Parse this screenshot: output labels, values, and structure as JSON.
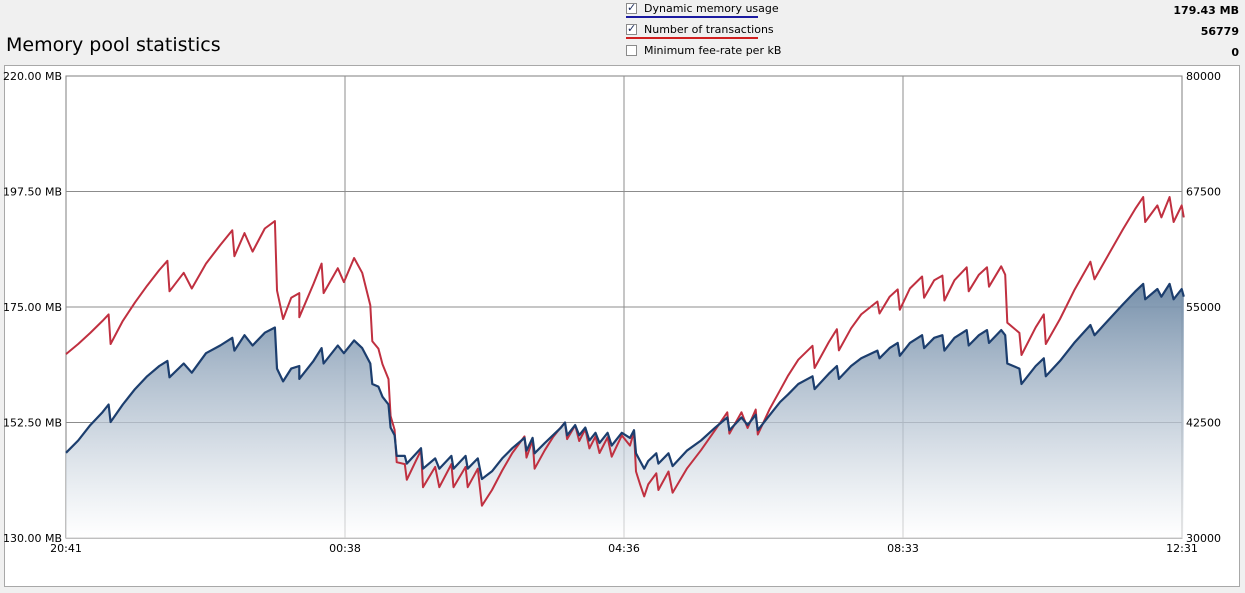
{
  "page_title": "Memory pool statistics",
  "legend": [
    {
      "label": "Dynamic memory usage",
      "checked": true,
      "underline_color": "#1a1aa0",
      "value": "179.43 MB"
    },
    {
      "label": "Number of transactions",
      "checked": true,
      "underline_color": "#d02020",
      "value": "56779"
    },
    {
      "label": "Minimum fee-rate per kB",
      "checked": false,
      "underline_color": "",
      "value": "0"
    }
  ],
  "chart_data": {
    "type": "line",
    "title": "Memory pool statistics",
    "x_tick_labels": [
      "20:41",
      "00:38",
      "04:36",
      "08:33",
      "12:31"
    ],
    "y_left": {
      "tick_labels": [
        "220.00 MB",
        "197.50 MB",
        "175.00 MB",
        "152.50 MB",
        "130.00 MB"
      ],
      "ylim": [
        130,
        220
      ],
      "unit": "MB"
    },
    "y_right": {
      "tick_labels": [
        "80000",
        "67500",
        "55000",
        "42500",
        "30000"
      ],
      "ylim": [
        30000,
        80000
      ]
    },
    "grid": true,
    "x_range_hours": [
      0,
      15.83
    ],
    "series": [
      {
        "name": "Dynamic memory usage",
        "axis": "left",
        "color": "#1c3e6e",
        "filled": true,
        "points": [
          [
            0,
            146.6
          ],
          [
            0.3,
            149.0
          ],
          [
            0.6,
            152.0
          ],
          [
            0.9,
            154.5
          ],
          [
            1.05,
            156.0
          ],
          [
            1.1,
            152.6
          ],
          [
            1.4,
            156.0
          ],
          [
            1.7,
            159.0
          ],
          [
            2.0,
            161.5
          ],
          [
            2.3,
            163.5
          ],
          [
            2.5,
            164.5
          ],
          [
            2.55,
            161.3
          ],
          [
            2.9,
            164.0
          ],
          [
            3.1,
            162.2
          ],
          [
            3.45,
            166.0
          ],
          [
            3.8,
            167.5
          ],
          [
            4.1,
            169.0
          ],
          [
            4.15,
            166.5
          ],
          [
            4.4,
            169.5
          ],
          [
            4.6,
            167.5
          ],
          [
            4.9,
            170.0
          ],
          [
            5.15,
            171.0
          ],
          [
            5.2,
            163.0
          ],
          [
            5.35,
            160.5
          ],
          [
            5.55,
            163.0
          ],
          [
            5.75,
            163.5
          ],
          [
            5.75,
            161.0
          ],
          [
            6.1,
            164.5
          ],
          [
            6.3,
            167.0
          ],
          [
            6.35,
            164.0
          ],
          [
            6.7,
            167.5
          ],
          [
            6.85,
            166.0
          ],
          [
            7.1,
            168.5
          ],
          [
            7.3,
            167.0
          ],
          [
            7.5,
            164.0
          ],
          [
            7.55,
            160.0
          ],
          [
            7.7,
            159.5
          ],
          [
            7.8,
            157.5
          ],
          [
            7.95,
            156.0
          ],
          [
            8.0,
            151.5
          ],
          [
            8.1,
            150.0
          ],
          [
            8.15,
            146.0
          ],
          [
            8.35,
            146.0
          ],
          [
            8.4,
            144.5
          ],
          [
            8.75,
            147.5
          ],
          [
            8.8,
            143.5
          ],
          [
            9.1,
            145.5
          ],
          [
            9.2,
            143.5
          ],
          [
            9.5,
            146.0
          ],
          [
            9.55,
            143.5
          ],
          [
            9.85,
            146.0
          ],
          [
            9.9,
            143.5
          ],
          [
            10.15,
            145.5
          ],
          [
            10.25,
            141.5
          ],
          [
            10.5,
            143.0
          ],
          [
            10.75,
            145.5
          ],
          [
            11.0,
            147.5
          ],
          [
            11.3,
            149.5
          ],
          [
            11.35,
            147.0
          ],
          [
            11.5,
            149.5
          ],
          [
            11.55,
            146.5
          ],
          [
            11.8,
            148.5
          ],
          [
            12.0,
            150.0
          ],
          [
            12.2,
            151.5
          ],
          [
            12.3,
            152.5
          ],
          [
            12.35,
            150.0
          ],
          [
            12.55,
            152.0
          ],
          [
            12.65,
            150.0
          ],
          [
            12.8,
            151.5
          ],
          [
            12.9,
            149.0
          ],
          [
            13.05,
            150.5
          ],
          [
            13.15,
            148.5
          ],
          [
            13.35,
            150.5
          ],
          [
            13.45,
            148.0
          ],
          [
            13.7,
            150.5
          ],
          [
            13.9,
            149.5
          ],
          [
            14.0,
            151.0
          ],
          [
            14.05,
            146.5
          ],
          [
            14.15,
            145.0
          ],
          [
            14.25,
            143.5
          ],
          [
            14.35,
            145.0
          ],
          [
            14.55,
            146.5
          ],
          [
            14.6,
            144.5
          ],
          [
            14.85,
            146.5
          ],
          [
            14.95,
            144.0
          ],
          [
            15.3,
            147.0
          ],
          [
            15.65,
            149.0
          ],
          [
            16.0,
            151.5
          ],
          [
            16.3,
            153.5
          ],
          [
            16.35,
            151.0
          ],
          [
            16.65,
            153.5
          ],
          [
            16.8,
            152.0
          ],
          [
            17.0,
            154.0
          ],
          [
            17.05,
            151.0
          ],
          [
            17.35,
            154.0
          ],
          [
            17.6,
            156.5
          ],
          [
            17.8,
            158.0
          ],
          [
            18.05,
            160.0
          ],
          [
            18.4,
            161.5
          ],
          [
            18.45,
            159.0
          ],
          [
            18.8,
            162.0
          ],
          [
            19.0,
            163.5
          ],
          [
            19.05,
            161.0
          ],
          [
            19.35,
            163.5
          ],
          [
            19.6,
            165.0
          ],
          [
            20.0,
            166.5
          ],
          [
            20.05,
            165.0
          ],
          [
            20.3,
            167.0
          ],
          [
            20.5,
            168.0
          ],
          [
            20.55,
            165.5
          ],
          [
            20.8,
            168.0
          ],
          [
            21.1,
            169.5
          ],
          [
            21.15,
            167.0
          ],
          [
            21.4,
            169.0
          ],
          [
            21.6,
            169.5
          ],
          [
            21.65,
            166.5
          ],
          [
            21.9,
            169.0
          ],
          [
            22.2,
            170.5
          ],
          [
            22.25,
            167.5
          ],
          [
            22.5,
            169.5
          ],
          [
            22.7,
            170.5
          ],
          [
            22.75,
            168.0
          ],
          [
            23.05,
            170.5
          ],
          [
            23.15,
            169.5
          ],
          [
            23.2,
            164.0
          ],
          [
            23.5,
            163.0
          ],
          [
            23.55,
            160.0
          ],
          [
            23.9,
            163.5
          ],
          [
            24.1,
            165.0
          ],
          [
            24.15,
            161.5
          ],
          [
            24.5,
            164.5
          ],
          [
            24.85,
            168.0
          ],
          [
            25.25,
            171.5
          ],
          [
            25.35,
            169.5
          ],
          [
            25.7,
            172.5
          ],
          [
            26.05,
            175.5
          ],
          [
            26.35,
            178.0
          ],
          [
            26.55,
            179.5
          ],
          [
            26.6,
            176.5
          ],
          [
            26.9,
            178.5
          ],
          [
            27.0,
            177.0
          ],
          [
            27.2,
            179.5
          ],
          [
            27.3,
            176.5
          ],
          [
            27.5,
            178.5
          ],
          [
            27.55,
            177.0
          ]
        ],
        "x_scale": 0.5755
      },
      {
        "name": "Number of transactions",
        "axis": "right",
        "color": "#c03040",
        "points": [
          [
            0,
            49900
          ],
          [
            0.3,
            51000
          ],
          [
            0.6,
            52200
          ],
          [
            0.9,
            53500
          ],
          [
            1.05,
            54200
          ],
          [
            1.1,
            51000
          ],
          [
            1.4,
            53500
          ],
          [
            1.7,
            55500
          ],
          [
            2.0,
            57300
          ],
          [
            2.3,
            59000
          ],
          [
            2.5,
            60000
          ],
          [
            2.55,
            56700
          ],
          [
            2.9,
            58700
          ],
          [
            3.1,
            57000
          ],
          [
            3.45,
            59700
          ],
          [
            3.8,
            61700
          ],
          [
            4.1,
            63300
          ],
          [
            4.15,
            60500
          ],
          [
            4.4,
            63000
          ],
          [
            4.6,
            61000
          ],
          [
            4.9,
            63500
          ],
          [
            5.15,
            64300
          ],
          [
            5.2,
            56800
          ],
          [
            5.35,
            53700
          ],
          [
            5.55,
            56000
          ],
          [
            5.75,
            56500
          ],
          [
            5.75,
            53900
          ],
          [
            6.1,
            57500
          ],
          [
            6.3,
            59700
          ],
          [
            6.35,
            56500
          ],
          [
            6.7,
            59200
          ],
          [
            6.85,
            57700
          ],
          [
            7.1,
            60300
          ],
          [
            7.3,
            58700
          ],
          [
            7.5,
            55200
          ],
          [
            7.55,
            51300
          ],
          [
            7.7,
            50500
          ],
          [
            7.8,
            48800
          ],
          [
            7.95,
            47200
          ],
          [
            8.0,
            43200
          ],
          [
            8.1,
            41700
          ],
          [
            8.15,
            38200
          ],
          [
            8.35,
            38000
          ],
          [
            8.4,
            36300
          ],
          [
            8.75,
            39500
          ],
          [
            8.8,
            35500
          ],
          [
            9.1,
            37700
          ],
          [
            9.2,
            35500
          ],
          [
            9.5,
            38000
          ],
          [
            9.55,
            35500
          ],
          [
            9.85,
            37700
          ],
          [
            9.9,
            35500
          ],
          [
            10.15,
            37500
          ],
          [
            10.25,
            33500
          ],
          [
            10.5,
            35200
          ],
          [
            10.75,
            37300
          ],
          [
            11.0,
            39200
          ],
          [
            11.3,
            41000
          ],
          [
            11.35,
            38700
          ],
          [
            11.5,
            40600
          ],
          [
            11.55,
            37500
          ],
          [
            11.8,
            39500
          ],
          [
            12.0,
            40900
          ],
          [
            12.2,
            42000
          ],
          [
            12.3,
            42500
          ],
          [
            12.35,
            40700
          ],
          [
            12.55,
            42200
          ],
          [
            12.65,
            40500
          ],
          [
            12.8,
            41800
          ],
          [
            12.9,
            39700
          ],
          [
            13.05,
            41000
          ],
          [
            13.15,
            39200
          ],
          [
            13.35,
            40900
          ],
          [
            13.45,
            38800
          ],
          [
            13.7,
            41100
          ],
          [
            13.9,
            40000
          ],
          [
            14.0,
            41500
          ],
          [
            14.05,
            37200
          ],
          [
            14.15,
            35800
          ],
          [
            14.25,
            34500
          ],
          [
            14.35,
            35800
          ],
          [
            14.55,
            37000
          ],
          [
            14.6,
            35200
          ],
          [
            14.85,
            37200
          ],
          [
            14.95,
            34900
          ],
          [
            15.3,
            37500
          ],
          [
            15.65,
            39500
          ],
          [
            16.0,
            41700
          ],
          [
            16.3,
            43600
          ],
          [
            16.35,
            41300
          ],
          [
            16.65,
            43600
          ],
          [
            16.8,
            41900
          ],
          [
            17.0,
            43900
          ],
          [
            17.05,
            41200
          ],
          [
            17.35,
            44000
          ],
          [
            17.6,
            46000
          ],
          [
            17.8,
            47600
          ],
          [
            18.05,
            49300
          ],
          [
            18.4,
            50800
          ],
          [
            18.45,
            48400
          ],
          [
            18.8,
            51200
          ],
          [
            19.0,
            52600
          ],
          [
            19.05,
            50300
          ],
          [
            19.35,
            52700
          ],
          [
            19.6,
            54200
          ],
          [
            20.0,
            55600
          ],
          [
            20.05,
            54300
          ],
          [
            20.3,
            56100
          ],
          [
            20.5,
            56900
          ],
          [
            20.55,
            54700
          ],
          [
            20.8,
            57000
          ],
          [
            21.1,
            58300
          ],
          [
            21.15,
            56000
          ],
          [
            21.4,
            57900
          ],
          [
            21.6,
            58400
          ],
          [
            21.65,
            55700
          ],
          [
            21.9,
            57900
          ],
          [
            22.2,
            59300
          ],
          [
            22.25,
            56700
          ],
          [
            22.5,
            58500
          ],
          [
            22.7,
            59300
          ],
          [
            22.75,
            57200
          ],
          [
            23.05,
            59400
          ],
          [
            23.15,
            58500
          ],
          [
            23.2,
            53300
          ],
          [
            23.5,
            52200
          ],
          [
            23.55,
            49800
          ],
          [
            23.9,
            52800
          ],
          [
            24.1,
            54200
          ],
          [
            24.15,
            51000
          ],
          [
            24.5,
            53700
          ],
          [
            24.85,
            56800
          ],
          [
            25.25,
            59900
          ],
          [
            25.35,
            58000
          ],
          [
            25.7,
            60700
          ],
          [
            26.05,
            63400
          ],
          [
            26.35,
            65600
          ],
          [
            26.55,
            66900
          ],
          [
            26.6,
            64200
          ],
          [
            26.9,
            66000
          ],
          [
            27.0,
            64700
          ],
          [
            27.2,
            66900
          ],
          [
            27.3,
            64200
          ],
          [
            27.5,
            66000
          ],
          [
            27.55,
            64700
          ]
        ],
        "x_scale": 0.5755
      }
    ]
  }
}
